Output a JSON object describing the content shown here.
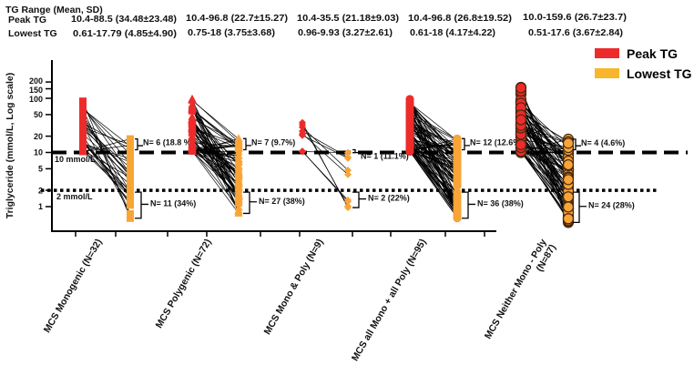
{
  "chart_data": {
    "type": "scatter",
    "subtype": "paired before-after (peak vs lowest)",
    "table": {
      "title": "TG Range (Mean, SD)",
      "row_labels": [
        "Peak TG",
        "Lowest TG"
      ],
      "peak": [
        "10.4-88.5 (34.48±23.48)",
        "10.4-96.8 (22.7±15.27)",
        "10.4-35.5 (21.18±9.03)",
        "10.4-96.8 (26.8±19.52)",
        "10.0-159.6 (26.7±23.7)"
      ],
      "lowest": [
        "0.61-17.79 (4.85±4.90)",
        "0.75-18 (3.75±3.68)",
        "0.96-9.93 (3.27±2.61)",
        "0.61-18 (4.17±4.22)",
        "0.51-17.6 (3.67±2.84)"
      ]
    },
    "ylabel": "Triglyceride (mmol/L, Log scale)",
    "yscale": "log",
    "ylim": [
      0.4,
      400
    ],
    "yticks": [
      1,
      2,
      5,
      10,
      20,
      50,
      100,
      150,
      200
    ],
    "reference_lines": [
      {
        "value": 10,
        "label": "10 mmol/L",
        "style": "dashed"
      },
      {
        "value": 2,
        "label": "2 mmol/L",
        "style": "dotted"
      }
    ],
    "legend": {
      "placement": "top-right",
      "entries": [
        {
          "name": "Peak TG",
          "color": "#ee2b2b"
        },
        {
          "name": "Lowest TG",
          "color": "#f9a436"
        }
      ]
    },
    "groups": [
      {
        "name": "MCS Monogenic (N=32)",
        "n": 32,
        "marker": "square",
        "peak_range": [
          10.4,
          88.5
        ],
        "lowest_range": [
          0.61,
          17.79
        ],
        "above10": "N= 6 (18.8 %)",
        "below2": "N= 11 (34%)"
      },
      {
        "name": "MCS Polygenic (N=72)",
        "n": 72,
        "marker": "triangle",
        "peak_range": [
          10.4,
          96.8
        ],
        "lowest_range": [
          0.75,
          18
        ],
        "above10": "N= 7 (9.7%)",
        "below2": "N= 27 (38%)"
      },
      {
        "name": "MCS Mono & Poly (N=9)",
        "n": 9,
        "marker": "diamond",
        "peak_range": [
          10.4,
          35.5
        ],
        "lowest_range": [
          0.96,
          9.93
        ],
        "above10": "N= 1 (11.1%)",
        "below2": "N= 2 (22%)"
      },
      {
        "name": "MCS all Mono + all Poly (N=95)",
        "n": 95,
        "marker": "circle",
        "peak_range": [
          10.4,
          96.8
        ],
        "lowest_range": [
          0.61,
          18
        ],
        "above10": "N= 12 (12.6%)",
        "below2": "N= 36 (38%)"
      },
      {
        "name": "MCS Neither Mono - Poly (N=87)",
        "n": 87,
        "marker": "circle-outlined",
        "peak_range": [
          10.0,
          159.6
        ],
        "lowest_range": [
          0.51,
          17.6
        ],
        "above10": "N= 4 (4.6%)",
        "below2": "N= 24 (28%)"
      }
    ]
  }
}
